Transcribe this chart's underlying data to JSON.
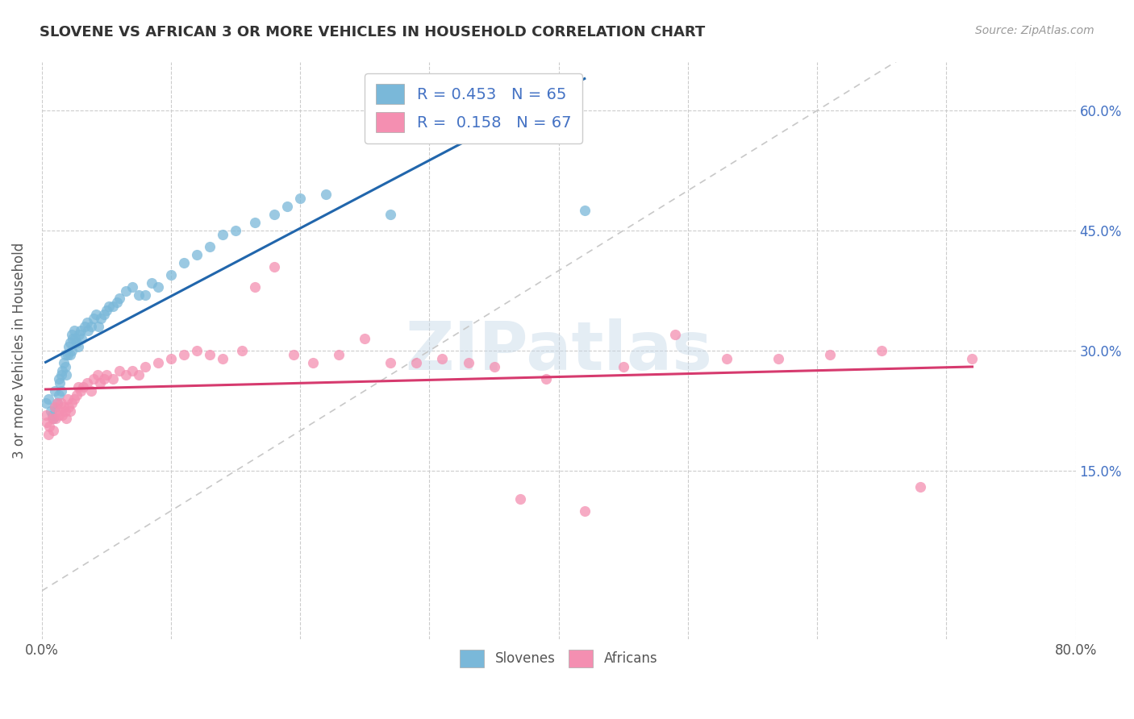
{
  "title": "SLOVENE VS AFRICAN 3 OR MORE VEHICLES IN HOUSEHOLD CORRELATION CHART",
  "source": "Source: ZipAtlas.com",
  "ylabel": "3 or more Vehicles in Household",
  "xlim": [
    0.0,
    0.8
  ],
  "ylim": [
    -0.06,
    0.66
  ],
  "x_tick_vals": [
    0.0,
    0.1,
    0.2,
    0.3,
    0.4,
    0.5,
    0.6,
    0.7,
    0.8
  ],
  "x_tick_labels": [
    "0.0%",
    "",
    "",
    "",
    "",
    "",
    "",
    "",
    "80.0%"
  ],
  "y_tick_vals": [
    0.15,
    0.3,
    0.45,
    0.6
  ],
  "y_tick_labels": [
    "15.0%",
    "30.0%",
    "45.0%",
    "60.0%"
  ],
  "watermark": "ZIPatlas",
  "legend_entries": [
    {
      "label_r": "R = 0.453",
      "label_n": "N = 65",
      "color": "#aec6e8"
    },
    {
      "label_r": "R =  0.158",
      "label_n": "N = 67",
      "color": "#f4b8c8"
    }
  ],
  "legend_bottom": [
    "Slovenes",
    "Africans"
  ],
  "slovene_color": "#7ab8d9",
  "african_color": "#f48fb1",
  "trendline_slovene_color": "#2166ac",
  "trendline_african_color": "#d63a6e",
  "diagonal_color": "#c8c8c8",
  "slovene_x": [
    0.003,
    0.005,
    0.007,
    0.008,
    0.009,
    0.01,
    0.01,
    0.012,
    0.013,
    0.013,
    0.014,
    0.015,
    0.015,
    0.016,
    0.017,
    0.018,
    0.018,
    0.019,
    0.02,
    0.021,
    0.022,
    0.022,
    0.023,
    0.023,
    0.024,
    0.025,
    0.026,
    0.027,
    0.028,
    0.029,
    0.03,
    0.031,
    0.033,
    0.035,
    0.036,
    0.038,
    0.04,
    0.042,
    0.044,
    0.046,
    0.048,
    0.05,
    0.052,
    0.055,
    0.058,
    0.06,
    0.065,
    0.07,
    0.075,
    0.08,
    0.085,
    0.09,
    0.1,
    0.11,
    0.12,
    0.13,
    0.14,
    0.15,
    0.165,
    0.18,
    0.19,
    0.2,
    0.22,
    0.27,
    0.42
  ],
  "slovene_y": [
    0.235,
    0.24,
    0.225,
    0.22,
    0.215,
    0.23,
    0.25,
    0.235,
    0.265,
    0.245,
    0.26,
    0.27,
    0.25,
    0.275,
    0.285,
    0.295,
    0.28,
    0.27,
    0.295,
    0.305,
    0.31,
    0.295,
    0.32,
    0.3,
    0.315,
    0.325,
    0.315,
    0.31,
    0.305,
    0.32,
    0.325,
    0.315,
    0.33,
    0.335,
    0.325,
    0.33,
    0.34,
    0.345,
    0.33,
    0.34,
    0.345,
    0.35,
    0.355,
    0.355,
    0.36,
    0.365,
    0.375,
    0.38,
    0.37,
    0.37,
    0.385,
    0.38,
    0.395,
    0.41,
    0.42,
    0.43,
    0.445,
    0.45,
    0.46,
    0.47,
    0.48,
    0.49,
    0.495,
    0.47,
    0.475
  ],
  "african_x": [
    0.003,
    0.004,
    0.005,
    0.006,
    0.008,
    0.009,
    0.01,
    0.011,
    0.012,
    0.013,
    0.014,
    0.015,
    0.016,
    0.017,
    0.018,
    0.019,
    0.02,
    0.021,
    0.022,
    0.023,
    0.025,
    0.027,
    0.028,
    0.03,
    0.032,
    0.035,
    0.038,
    0.04,
    0.043,
    0.045,
    0.048,
    0.05,
    0.055,
    0.06,
    0.065,
    0.07,
    0.075,
    0.08,
    0.09,
    0.1,
    0.11,
    0.12,
    0.13,
    0.14,
    0.155,
    0.165,
    0.18,
    0.195,
    0.21,
    0.23,
    0.25,
    0.27,
    0.29,
    0.31,
    0.33,
    0.35,
    0.37,
    0.39,
    0.42,
    0.45,
    0.49,
    0.53,
    0.57,
    0.61,
    0.65,
    0.68,
    0.72
  ],
  "african_y": [
    0.22,
    0.21,
    0.195,
    0.205,
    0.215,
    0.2,
    0.23,
    0.215,
    0.235,
    0.22,
    0.225,
    0.235,
    0.22,
    0.23,
    0.225,
    0.215,
    0.24,
    0.23,
    0.225,
    0.235,
    0.24,
    0.245,
    0.255,
    0.25,
    0.255,
    0.26,
    0.25,
    0.265,
    0.27,
    0.26,
    0.265,
    0.27,
    0.265,
    0.275,
    0.27,
    0.275,
    0.27,
    0.28,
    0.285,
    0.29,
    0.295,
    0.3,
    0.295,
    0.29,
    0.3,
    0.38,
    0.405,
    0.295,
    0.285,
    0.295,
    0.315,
    0.285,
    0.285,
    0.29,
    0.285,
    0.28,
    0.115,
    0.265,
    0.1,
    0.28,
    0.32,
    0.29,
    0.29,
    0.295,
    0.3,
    0.13,
    0.29
  ]
}
